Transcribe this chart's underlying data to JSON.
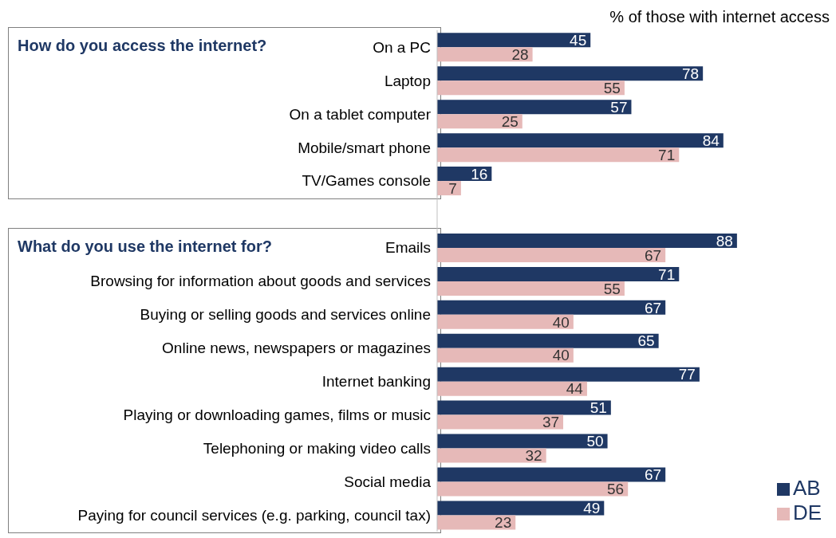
{
  "chart_data": {
    "type": "bar",
    "orientation": "horizontal",
    "categories": [
      "On a PC",
      "Laptop",
      "On a tablet computer",
      "Mobile/smart phone",
      "TV/Games console",
      null,
      "Emails",
      "Browsing for information about goods and services",
      "Buying or selling goods and services online",
      "Online news, newspapers or magazines",
      "Internet banking",
      "Playing or downloading games, films or music",
      "Telephoning or making video calls",
      "Social media",
      "Paying for council services (e.g. parking, council tax)"
    ],
    "series": [
      {
        "name": "AB",
        "color": "#1f3864",
        "values": [
          45,
          78,
          57,
          84,
          16,
          null,
          88,
          71,
          67,
          65,
          77,
          51,
          50,
          67,
          49
        ]
      },
      {
        "name": "DE",
        "color": "#e6b9b8",
        "values": [
          28,
          55,
          25,
          71,
          7,
          null,
          67,
          55,
          40,
          40,
          44,
          37,
          32,
          56,
          23
        ]
      }
    ],
    "data_labels": true,
    "legend": "bottom right",
    "annotations": [
      "% of those with internet access",
      "How do you access the internet?",
      "What do you use the internet for?"
    ]
  }
}
